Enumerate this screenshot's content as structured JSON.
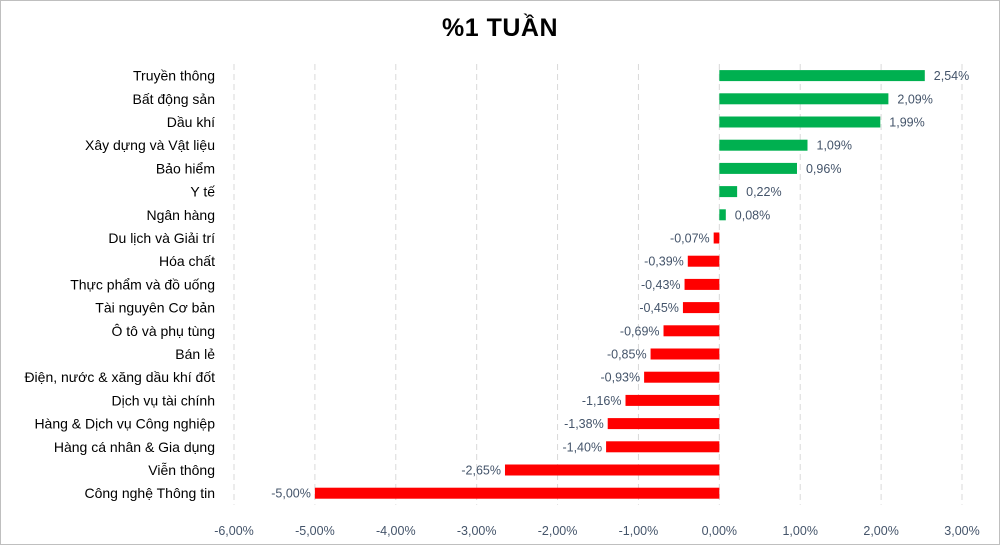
{
  "chart_data": {
    "type": "bar",
    "orientation": "horizontal",
    "title": "%1 TUẦN",
    "categories": [
      "Truyền thông",
      "Bất động sản",
      "Dầu khí",
      "Xây dựng và Vật liệu",
      "Bảo hiểm",
      "Y tế",
      "Ngân hàng",
      "Du lịch và Giải trí",
      "Hóa chất",
      "Thực phẩm và đồ uống",
      "Tài nguyên Cơ bản",
      "Ô tô và phụ tùng",
      "Bán lẻ",
      "Điện, nước & xăng dầu khí đốt",
      "Dịch vụ tài chính",
      "Hàng & Dịch vụ Công nghiệp",
      "Hàng cá nhân & Gia dụng",
      "Viễn thông",
      "Công nghệ Thông tin"
    ],
    "values": [
      2.54,
      2.09,
      1.99,
      1.09,
      0.96,
      0.22,
      0.08,
      -0.07,
      -0.39,
      -0.43,
      -0.45,
      -0.69,
      -0.85,
      -0.93,
      -1.16,
      -1.38,
      -1.4,
      -2.65,
      -5.0
    ],
    "value_labels": [
      "2,54%",
      "2,09%",
      "1,99%",
      "1,09%",
      "0,96%",
      "0,22%",
      "0,08%",
      "-0,07%",
      "-0,39%",
      "-0,43%",
      "-0,45%",
      "-0,69%",
      "-0,85%",
      "-0,93%",
      "-1,16%",
      "-1,38%",
      "-1,40%",
      "-2,65%",
      "-5,00%"
    ],
    "xlim": [
      -6,
      3
    ],
    "x_ticks": [
      -6,
      -5,
      -4,
      -3,
      -2,
      -1,
      0,
      1,
      2,
      3
    ],
    "x_tick_labels": [
      "-6,00%",
      "-5,00%",
      "-4,00%",
      "-3,00%",
      "-2,00%",
      "-1,00%",
      "0,00%",
      "1,00%",
      "2,00%",
      "3,00%"
    ],
    "grid": true,
    "colors": {
      "positive": "#00b050",
      "negative": "#ff0000",
      "grid": "#d9d9d9",
      "label": "#44546a"
    }
  }
}
